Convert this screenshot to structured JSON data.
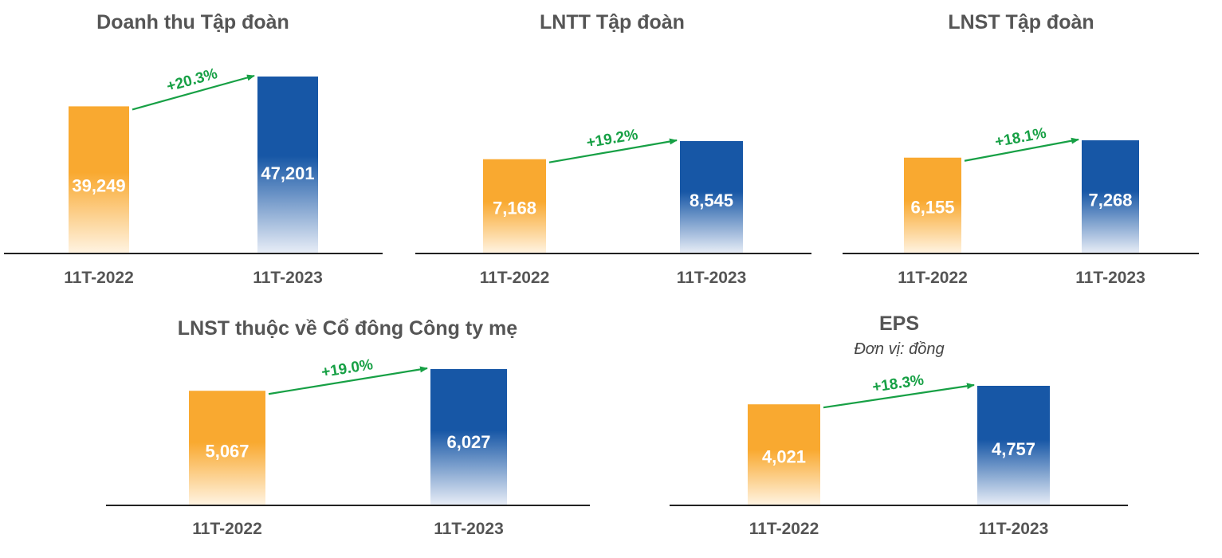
{
  "colors": {
    "bar_2022": "#f9a930",
    "bar_2023": "#1757a6",
    "growth": "#17a045",
    "axis": "#222222",
    "title": "#555555"
  },
  "chart_data": [
    {
      "type": "bar",
      "title": "Doanh thu Tập đoàn",
      "subtitle": "",
      "categories": [
        "11T-2022",
        "11T-2023"
      ],
      "values": [
        39249,
        47201
      ],
      "value_labels": [
        "39,249",
        "47,201"
      ],
      "growth_label": "+20.3%"
    },
    {
      "type": "bar",
      "title": "LNTT Tập đoàn",
      "subtitle": "",
      "categories": [
        "11T-2022",
        "11T-2023"
      ],
      "values": [
        7168,
        8545
      ],
      "value_labels": [
        "7,168",
        "8,545"
      ],
      "growth_label": "+19.2%"
    },
    {
      "type": "bar",
      "title": "LNST Tập đoàn",
      "subtitle": "",
      "categories": [
        "11T-2022",
        "11T-2023"
      ],
      "values": [
        6155,
        7268
      ],
      "value_labels": [
        "6,155",
        "7,268"
      ],
      "growth_label": "+18.1%"
    },
    {
      "type": "bar",
      "title": "LNST thuộc về Cổ đông Công ty mẹ",
      "subtitle": "",
      "categories": [
        "11T-2022",
        "11T-2023"
      ],
      "values": [
        5067,
        6027
      ],
      "value_labels": [
        "5,067",
        "6,027"
      ],
      "growth_label": "+19.0%"
    },
    {
      "type": "bar",
      "title": "EPS",
      "subtitle": "Đơn vị: đồng",
      "categories": [
        "11T-2022",
        "11T-2023"
      ],
      "values": [
        4021,
        4757
      ],
      "value_labels": [
        "4,021",
        "4,757"
      ],
      "growth_label": "+18.3%"
    }
  ]
}
